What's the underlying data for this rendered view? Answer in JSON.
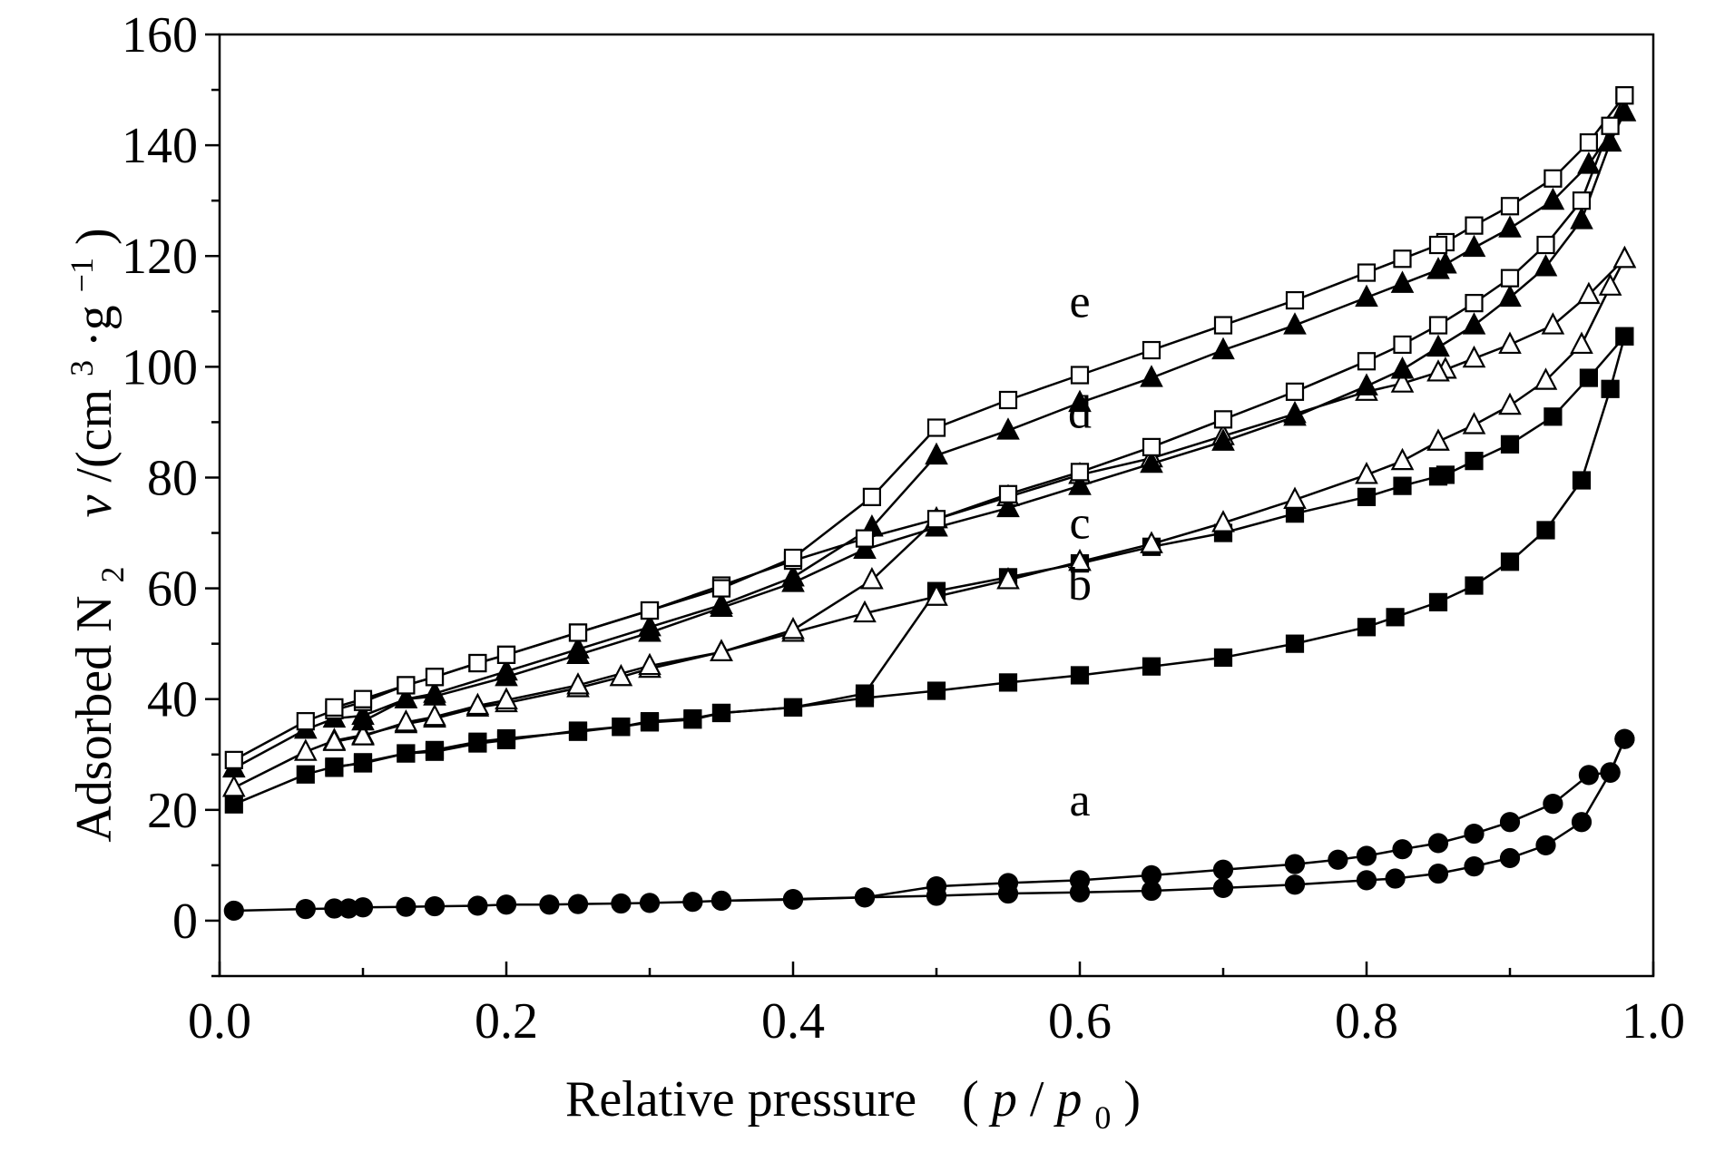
{
  "chart_data": {
    "type": "scatter",
    "xlabel": {
      "text": "Relative pressure",
      "paren_open": "(",
      "p": "p",
      "slash": "/",
      "p0": "p",
      "sub0": "0",
      "paren_close": ")"
    },
    "ylabel": {
      "adsorbed": "Adsorbed N",
      "sub2": "2",
      "v": "v",
      "unit_prefix": " /(cm",
      "sup3": "3",
      "mid": "·g",
      "supm1": "−1",
      "close": ")"
    },
    "xlim": [
      0.0,
      1.0
    ],
    "ylim": [
      -10,
      160
    ],
    "x_ticks": [
      "0.0",
      "0.2",
      "0.4",
      "0.6",
      "0.8",
      "1.0"
    ],
    "x_tick_values": [
      0.0,
      0.2,
      0.4,
      0.6,
      0.8,
      1.0
    ],
    "y_ticks": [
      "0",
      "20",
      "40",
      "60",
      "80",
      "100",
      "120",
      "140",
      "160"
    ],
    "y_tick_values": [
      0,
      20,
      40,
      60,
      80,
      100,
      120,
      140,
      160
    ],
    "grid": false,
    "series": [
      {
        "name": "a",
        "marker": "filled-circle",
        "label_at": [
          0.6,
          19
        ],
        "adsorption": [
          [
            0.01,
            1.8
          ],
          [
            0.06,
            2.1
          ],
          [
            0.08,
            2.2
          ],
          [
            0.09,
            2.2
          ],
          [
            0.1,
            2.4
          ],
          [
            0.13,
            2.5
          ],
          [
            0.15,
            2.6
          ],
          [
            0.18,
            2.7
          ],
          [
            0.2,
            2.9
          ],
          [
            0.23,
            2.9
          ],
          [
            0.25,
            3.0
          ],
          [
            0.28,
            3.1
          ],
          [
            0.3,
            3.2
          ],
          [
            0.33,
            3.4
          ],
          [
            0.35,
            3.6
          ],
          [
            0.4,
            3.8
          ],
          [
            0.45,
            4.2
          ],
          [
            0.5,
            4.5
          ],
          [
            0.55,
            4.9
          ],
          [
            0.6,
            5.1
          ],
          [
            0.65,
            5.4
          ],
          [
            0.7,
            5.9
          ],
          [
            0.75,
            6.5
          ],
          [
            0.8,
            7.3
          ],
          [
            0.82,
            7.6
          ],
          [
            0.85,
            8.5
          ],
          [
            0.875,
            9.8
          ],
          [
            0.9,
            11.3
          ],
          [
            0.925,
            13.6
          ],
          [
            0.95,
            17.8
          ],
          [
            0.97,
            26.7
          ],
          [
            0.98,
            32.8
          ]
        ],
        "desorption": [
          [
            0.98,
            32.8
          ],
          [
            0.97,
            26.8
          ],
          [
            0.955,
            26.3
          ],
          [
            0.93,
            21.1
          ],
          [
            0.9,
            17.8
          ],
          [
            0.875,
            15.7
          ],
          [
            0.85,
            14.0
          ],
          [
            0.825,
            12.9
          ],
          [
            0.8,
            11.7
          ],
          [
            0.78,
            11.0
          ],
          [
            0.75,
            10.2
          ],
          [
            0.7,
            9.2
          ],
          [
            0.65,
            8.2
          ],
          [
            0.6,
            7.3
          ],
          [
            0.55,
            6.8
          ],
          [
            0.5,
            6.2
          ],
          [
            0.45,
            4.2
          ],
          [
            0.4,
            3.9
          ],
          [
            0.35,
            3.6
          ]
        ]
      },
      {
        "name": "b",
        "marker": "filled-square",
        "label_at": [
          0.6,
          58
        ],
        "adsorption": [
          [
            0.01,
            21.0
          ],
          [
            0.06,
            26.4
          ],
          [
            0.08,
            27.8
          ],
          [
            0.1,
            28.4
          ],
          [
            0.13,
            30.2
          ],
          [
            0.15,
            30.8
          ],
          [
            0.18,
            32.3
          ],
          [
            0.2,
            32.9
          ],
          [
            0.25,
            34.1
          ],
          [
            0.28,
            35.0
          ],
          [
            0.3,
            36.0
          ],
          [
            0.33,
            36.5
          ],
          [
            0.35,
            37.5
          ],
          [
            0.4,
            38.5
          ],
          [
            0.45,
            40.2
          ],
          [
            0.5,
            41.5
          ],
          [
            0.55,
            43.0
          ],
          [
            0.6,
            44.3
          ],
          [
            0.65,
            45.9
          ],
          [
            0.7,
            47.5
          ],
          [
            0.75,
            50.0
          ],
          [
            0.8,
            53.0
          ],
          [
            0.82,
            54.8
          ],
          [
            0.85,
            57.5
          ],
          [
            0.875,
            60.5
          ],
          [
            0.9,
            64.8
          ],
          [
            0.925,
            70.5
          ],
          [
            0.95,
            79.5
          ],
          [
            0.97,
            96.0
          ],
          [
            0.98,
            105.5
          ]
        ],
        "desorption": [
          [
            0.98,
            105.5
          ],
          [
            0.955,
            98.0
          ],
          [
            0.93,
            91.0
          ],
          [
            0.9,
            86.0
          ],
          [
            0.875,
            83.0
          ],
          [
            0.855,
            80.5
          ],
          [
            0.85,
            80.2
          ],
          [
            0.825,
            78.5
          ],
          [
            0.8,
            76.5
          ],
          [
            0.75,
            73.5
          ],
          [
            0.7,
            70.0
          ],
          [
            0.65,
            67.5
          ],
          [
            0.6,
            64.5
          ],
          [
            0.55,
            62.0
          ],
          [
            0.5,
            59.5
          ],
          [
            0.45,
            41.0
          ],
          [
            0.4,
            38.5
          ],
          [
            0.35,
            37.5
          ],
          [
            0.33,
            36.3
          ],
          [
            0.3,
            35.8
          ],
          [
            0.28,
            35.0
          ],
          [
            0.25,
            34.3
          ],
          [
            0.2,
            32.6
          ],
          [
            0.18,
            32.0
          ],
          [
            0.15,
            30.5
          ],
          [
            0.13,
            30.2
          ],
          [
            0.1,
            28.6
          ],
          [
            0.08,
            27.6
          ]
        ]
      },
      {
        "name": "c",
        "marker": "open-triangle",
        "label_at": [
          0.6,
          69
        ],
        "adsorption": [
          [
            0.01,
            24.0
          ],
          [
            0.06,
            30.5
          ],
          [
            0.08,
            32.5
          ],
          [
            0.1,
            33.5
          ],
          [
            0.13,
            35.5
          ],
          [
            0.15,
            36.5
          ],
          [
            0.18,
            38.5
          ],
          [
            0.2,
            39.3
          ],
          [
            0.25,
            42.0
          ],
          [
            0.28,
            44.0
          ],
          [
            0.3,
            45.5
          ],
          [
            0.35,
            48.5
          ],
          [
            0.4,
            52.0
          ],
          [
            0.45,
            55.5
          ],
          [
            0.5,
            58.5
          ],
          [
            0.55,
            61.5
          ],
          [
            0.6,
            64.8
          ],
          [
            0.65,
            68.0
          ],
          [
            0.7,
            71.8
          ],
          [
            0.75,
            76.0
          ],
          [
            0.8,
            80.5
          ],
          [
            0.825,
            83.0
          ],
          [
            0.85,
            86.5
          ],
          [
            0.875,
            89.5
          ],
          [
            0.9,
            93.0
          ],
          [
            0.925,
            97.5
          ],
          [
            0.95,
            104.0
          ],
          [
            0.97,
            114.5
          ],
          [
            0.98,
            119.5
          ]
        ],
        "desorption": [
          [
            0.98,
            119.5
          ],
          [
            0.955,
            113.0
          ],
          [
            0.93,
            107.5
          ],
          [
            0.9,
            104.0
          ],
          [
            0.875,
            101.5
          ],
          [
            0.855,
            99.5
          ],
          [
            0.85,
            99.0
          ],
          [
            0.825,
            97.0
          ],
          [
            0.8,
            95.5
          ],
          [
            0.75,
            91.5
          ],
          [
            0.7,
            87.5
          ],
          [
            0.65,
            83.5
          ],
          [
            0.6,
            80.5
          ],
          [
            0.55,
            76.5
          ],
          [
            0.5,
            72.5
          ],
          [
            0.455,
            61.5
          ],
          [
            0.4,
            52.5
          ],
          [
            0.35,
            48.5
          ],
          [
            0.3,
            46.0
          ],
          [
            0.25,
            42.5
          ],
          [
            0.2,
            39.8
          ],
          [
            0.18,
            38.8
          ],
          [
            0.15,
            36.8
          ],
          [
            0.13,
            35.8
          ],
          [
            0.1,
            33.3
          ],
          [
            0.08,
            32.3
          ]
        ]
      },
      {
        "name": "d",
        "marker": "filled-triangle",
        "label_at": [
          0.6,
          89
        ],
        "adsorption": [
          [
            0.01,
            27.5
          ],
          [
            0.06,
            34.5
          ],
          [
            0.08,
            36.5
          ],
          [
            0.1,
            37.0
          ],
          [
            0.13,
            40.0
          ],
          [
            0.15,
            40.5
          ],
          [
            0.2,
            44.0
          ],
          [
            0.25,
            48.0
          ],
          [
            0.3,
            52.0
          ],
          [
            0.35,
            56.5
          ],
          [
            0.4,
            61.0
          ],
          [
            0.45,
            67.0
          ],
          [
            0.5,
            71.0
          ],
          [
            0.55,
            74.5
          ],
          [
            0.6,
            78.5
          ],
          [
            0.65,
            82.5
          ],
          [
            0.7,
            86.5
          ],
          [
            0.75,
            91.0
          ],
          [
            0.8,
            96.5
          ],
          [
            0.825,
            99.5
          ],
          [
            0.85,
            103.5
          ],
          [
            0.875,
            107.5
          ],
          [
            0.9,
            112.5
          ],
          [
            0.925,
            118.0
          ],
          [
            0.95,
            126.5
          ],
          [
            0.97,
            140.5
          ],
          [
            0.98,
            146.0
          ]
        ],
        "desorption": [
          [
            0.98,
            146.0
          ],
          [
            0.955,
            136.5
          ],
          [
            0.93,
            130.0
          ],
          [
            0.9,
            125.0
          ],
          [
            0.875,
            121.5
          ],
          [
            0.855,
            118.5
          ],
          [
            0.85,
            117.5
          ],
          [
            0.825,
            115.0
          ],
          [
            0.8,
            112.5
          ],
          [
            0.75,
            107.5
          ],
          [
            0.7,
            103.0
          ],
          [
            0.65,
            98.0
          ],
          [
            0.6,
            93.5
          ],
          [
            0.55,
            88.5
          ],
          [
            0.5,
            84.0
          ],
          [
            0.455,
            71.0
          ],
          [
            0.4,
            62.0
          ],
          [
            0.35,
            57.0
          ],
          [
            0.3,
            53.0
          ],
          [
            0.25,
            49.0
          ],
          [
            0.2,
            45.0
          ],
          [
            0.15,
            41.0
          ],
          [
            0.13,
            40.0
          ],
          [
            0.1,
            36.0
          ]
        ]
      },
      {
        "name": "e",
        "marker": "open-square",
        "label_at": [
          0.6,
          109
        ],
        "adsorption": [
          [
            0.01,
            29.0
          ],
          [
            0.06,
            36.0
          ],
          [
            0.08,
            38.0
          ],
          [
            0.1,
            39.5
          ],
          [
            0.13,
            42.5
          ],
          [
            0.15,
            44.0
          ],
          [
            0.18,
            46.5
          ],
          [
            0.2,
            48.0
          ],
          [
            0.25,
            52.0
          ],
          [
            0.3,
            56.0
          ],
          [
            0.35,
            60.5
          ],
          [
            0.4,
            65.0
          ],
          [
            0.45,
            69.0
          ],
          [
            0.5,
            72.5
          ],
          [
            0.55,
            77.0
          ],
          [
            0.6,
            81.0
          ],
          [
            0.65,
            85.5
          ],
          [
            0.7,
            90.5
          ],
          [
            0.75,
            95.5
          ],
          [
            0.8,
            101.0
          ],
          [
            0.825,
            104.0
          ],
          [
            0.85,
            107.5
          ],
          [
            0.875,
            111.5
          ],
          [
            0.9,
            116.0
          ],
          [
            0.925,
            122.0
          ],
          [
            0.95,
            130.0
          ],
          [
            0.97,
            143.5
          ],
          [
            0.98,
            149.0
          ]
        ],
        "desorption": [
          [
            0.98,
            149.0
          ],
          [
            0.955,
            140.5
          ],
          [
            0.93,
            134.0
          ],
          [
            0.9,
            129.0
          ],
          [
            0.875,
            125.5
          ],
          [
            0.855,
            122.5
          ],
          [
            0.85,
            122.0
          ],
          [
            0.825,
            119.5
          ],
          [
            0.8,
            117.0
          ],
          [
            0.75,
            112.0
          ],
          [
            0.7,
            107.5
          ],
          [
            0.65,
            103.0
          ],
          [
            0.6,
            98.5
          ],
          [
            0.55,
            94.0
          ],
          [
            0.5,
            89.0
          ],
          [
            0.455,
            76.5
          ],
          [
            0.4,
            65.5
          ],
          [
            0.35,
            60.0
          ],
          [
            0.3,
            56.0
          ],
          [
            0.25,
            52.0
          ],
          [
            0.2,
            48.0
          ],
          [
            0.18,
            46.5
          ],
          [
            0.15,
            44.0
          ],
          [
            0.13,
            42.5
          ],
          [
            0.1,
            40.0
          ],
          [
            0.08,
            38.5
          ]
        ]
      }
    ]
  }
}
